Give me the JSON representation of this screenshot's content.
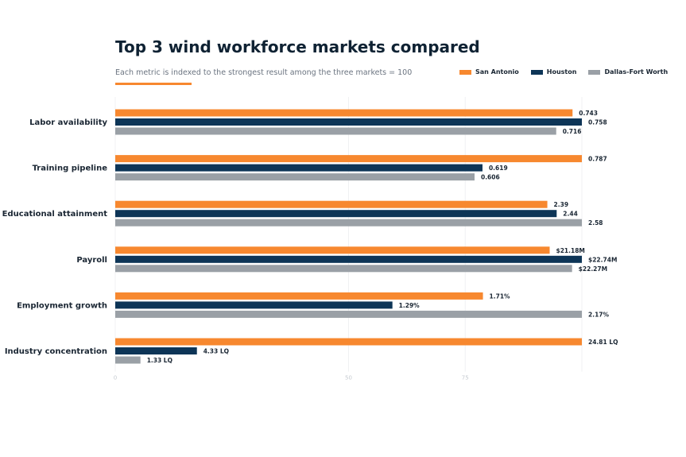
{
  "chart_data": {
    "type": "bar",
    "orientation": "horizontal",
    "title": "Top 3 wind workforce markets compared",
    "subtitle": "Each metric is indexed to the strongest result among the three markets = 100",
    "categories": [
      "Labor availability",
      "Training pipeline",
      "Educational attainment",
      "Payroll",
      "Employment growth",
      "Industry concentration"
    ],
    "series": [
      {
        "name": "San Antonio",
        "color": "#f7882f",
        "values": [
          98.0,
          100.0,
          92.6,
          93.1,
          78.8,
          100.0
        ],
        "labels": [
          "0.743",
          "0.787",
          "2.39",
          "$21.18M",
          "1.71%",
          "24.81 LQ"
        ]
      },
      {
        "name": "Houston",
        "color": "#0d3557",
        "values": [
          100.0,
          78.7,
          94.6,
          100.0,
          59.4,
          17.5
        ],
        "labels": [
          "0.758",
          "0.619",
          "2.44",
          "$22.74M",
          "1.29%",
          "4.33 LQ"
        ]
      },
      {
        "name": "Dallas-Fort Worth",
        "color": "#9aa0a6",
        "values": [
          94.5,
          77.0,
          100.0,
          97.9,
          100.0,
          5.4
        ],
        "labels": [
          "0.716",
          "0.606",
          "2.58",
          "$22.27M",
          "2.17%",
          "1.33 LQ"
        ]
      }
    ],
    "xlim": [
      0,
      100
    ],
    "x_ticks": [
      "0",
      "50",
      "75"
    ],
    "x_tick_values": [
      0,
      50,
      75
    ],
    "grid": true,
    "legend_position": "top-right"
  }
}
